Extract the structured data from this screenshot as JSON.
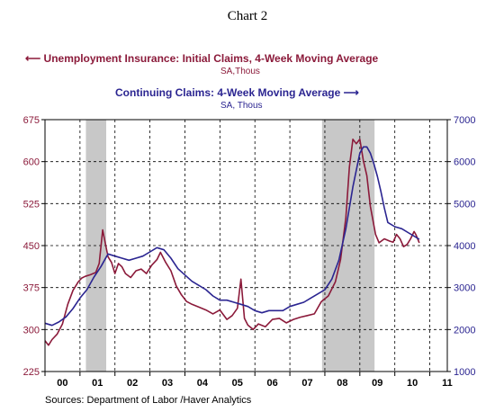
{
  "chart_title": "Chart 2",
  "legend": {
    "initial": {
      "arrow": "⟵",
      "label": "Unemployment Insurance: Initial Claims, 4-Week Moving Average",
      "sub": "SA,Thous",
      "color": "#8b1a3a"
    },
    "continuing": {
      "arrow": "⟶",
      "label": "Continuing Claims: 4-Week Moving Average",
      "sub": "SA, Thous",
      "color": "#2b2591"
    }
  },
  "source_text": "Sources:  Department of Labor /Haver Analytics",
  "chart_data": {
    "type": "line",
    "title": "Chart 2",
    "grid": true,
    "x_range": [
      2000.0,
      2011.5
    ],
    "x_tick_labels": [
      "00",
      "01",
      "02",
      "03",
      "04",
      "05",
      "06",
      "07",
      "08",
      "09",
      "10",
      "11"
    ],
    "left_axis": {
      "range": [
        225,
        675
      ],
      "ticks": [
        225,
        300,
        375,
        450,
        525,
        600,
        675
      ],
      "unit": "SA,Thous"
    },
    "right_axis": {
      "range": [
        1000,
        7000
      ],
      "ticks": [
        1000,
        2000,
        3000,
        4000,
        5000,
        6000,
        7000
      ],
      "tick_labels": [
        "1000",
        "2000",
        "3000",
        "4000",
        "5000",
        "6000",
        "7000"
      ],
      "unit": "SA, Thous"
    },
    "recession_shading": [
      [
        2001.17,
        2001.75
      ],
      [
        2007.92,
        2009.42
      ]
    ],
    "series": [
      {
        "name": "Unemployment Insurance: Initial Claims, 4-Week Moving Average",
        "axis": "left",
        "color": "#8b1a3a",
        "x": [
          2000.0,
          2000.1,
          2000.2,
          2000.35,
          2000.5,
          2000.65,
          2000.8,
          2000.95,
          2001.05,
          2001.15,
          2001.3,
          2001.45,
          2001.55,
          2001.65,
          2001.72,
          2001.8,
          2001.9,
          2002.0,
          2002.1,
          2002.2,
          2002.3,
          2002.45,
          2002.6,
          2002.75,
          2002.9,
          2003.05,
          2003.2,
          2003.3,
          2003.45,
          2003.6,
          2003.75,
          2003.9,
          2004.05,
          2004.2,
          2004.4,
          2004.6,
          2004.8,
          2005.0,
          2005.2,
          2005.35,
          2005.5,
          2005.6,
          2005.7,
          2005.8,
          2005.95,
          2006.1,
          2006.3,
          2006.5,
          2006.7,
          2006.9,
          2007.1,
          2007.3,
          2007.5,
          2007.7,
          2007.9,
          2008.1,
          2008.3,
          2008.45,
          2008.6,
          2008.7,
          2008.8,
          2008.9,
          2009.0,
          2009.1,
          2009.2,
          2009.3,
          2009.45,
          2009.55,
          2009.7,
          2009.85,
          2009.95,
          2010.05,
          2010.15,
          2010.25,
          2010.35,
          2010.45,
          2010.55,
          2010.6,
          2010.7
        ],
        "values": [
          280,
          272,
          282,
          292,
          310,
          345,
          370,
          385,
          392,
          395,
          398,
          402,
          418,
          478,
          455,
          430,
          420,
          400,
          418,
          412,
          400,
          393,
          405,
          408,
          400,
          415,
          425,
          438,
          420,
          405,
          378,
          362,
          350,
          345,
          340,
          335,
          328,
          335,
          318,
          325,
          338,
          390,
          320,
          308,
          300,
          310,
          305,
          318,
          320,
          312,
          318,
          322,
          325,
          328,
          350,
          360,
          385,
          425,
          500,
          590,
          640,
          632,
          640,
          602,
          575,
          520,
          470,
          455,
          462,
          458,
          456,
          470,
          462,
          448,
          452,
          462,
          475,
          470,
          455
        ]
      },
      {
        "name": "Continuing Claims: 4-Week Moving Average",
        "axis": "right",
        "color": "#2b2591",
        "x": [
          2000.0,
          2000.2,
          2000.4,
          2000.6,
          2000.8,
          2001.0,
          2001.2,
          2001.4,
          2001.6,
          2001.8,
          2002.0,
          2002.2,
          2002.4,
          2002.6,
          2002.8,
          2003.0,
          2003.2,
          2003.4,
          2003.6,
          2003.8,
          2004.0,
          2004.2,
          2004.4,
          2004.6,
          2004.8,
          2005.0,
          2005.2,
          2005.4,
          2005.6,
          2005.8,
          2006.0,
          2006.2,
          2006.4,
          2006.6,
          2006.8,
          2007.0,
          2007.2,
          2007.4,
          2007.6,
          2007.8,
          2008.0,
          2008.2,
          2008.4,
          2008.6,
          2008.8,
          2009.0,
          2009.1,
          2009.2,
          2009.3,
          2009.4,
          2009.5,
          2009.6,
          2009.7,
          2009.8,
          2010.0,
          2010.2,
          2010.4,
          2010.5,
          2010.7
        ],
        "values": [
          2150,
          2100,
          2180,
          2300,
          2500,
          2750,
          2950,
          3250,
          3500,
          3800,
          3750,
          3700,
          3650,
          3700,
          3750,
          3850,
          3950,
          3900,
          3700,
          3450,
          3300,
          3150,
          3050,
          2950,
          2800,
          2700,
          2700,
          2650,
          2600,
          2550,
          2450,
          2400,
          2450,
          2450,
          2450,
          2550,
          2600,
          2650,
          2750,
          2850,
          2950,
          3200,
          3650,
          4400,
          5400,
          6200,
          6350,
          6350,
          6200,
          5950,
          5650,
          5300,
          4900,
          4550,
          4450,
          4400,
          4300,
          4250,
          4150
        ]
      }
    ]
  }
}
